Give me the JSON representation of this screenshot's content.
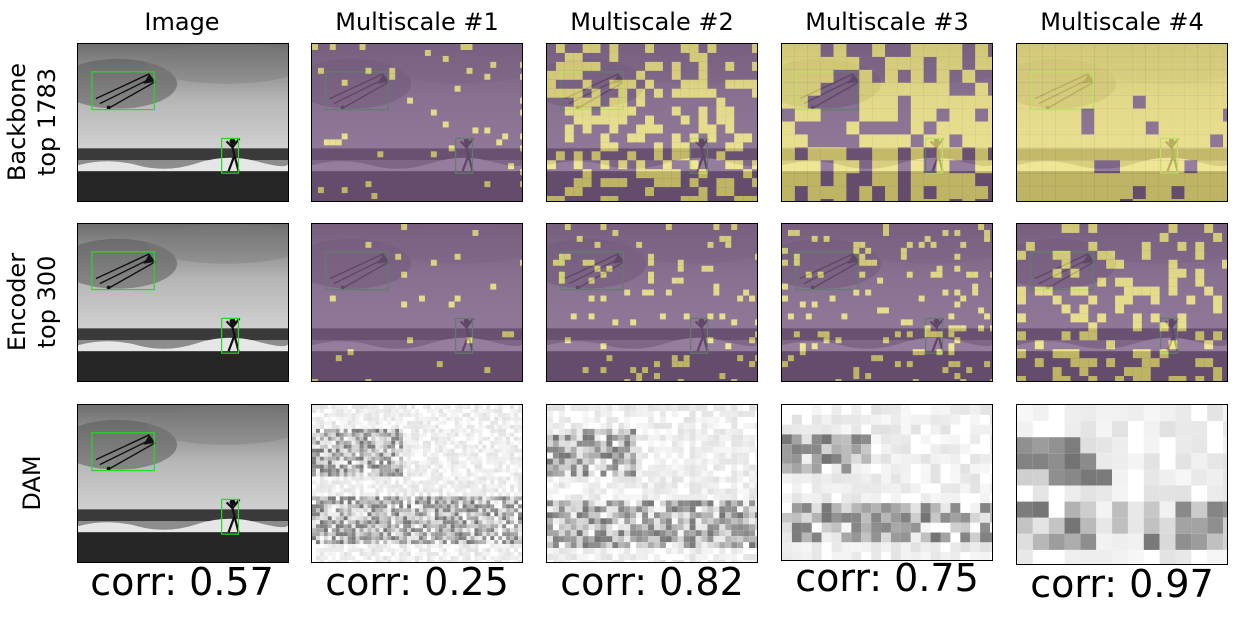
{
  "column_titles": [
    "Image",
    "Multiscale #1",
    "Multiscale #2",
    "Multiscale #3",
    "Multiscale #4"
  ],
  "row_labels": [
    {
      "line1": "Backbone",
      "line2": "top 1783"
    },
    {
      "line1": "Encoder",
      "line2": "top 300"
    },
    {
      "line1": "DAM",
      "line2": ""
    }
  ],
  "correlations": [
    "corr: 0.57",
    "corr: 0.25",
    "corr: 0.82",
    "corr: 0.75",
    "corr: 0.97"
  ],
  "colors": {
    "purple": "#7a5a86",
    "yellow": "#f2e57a",
    "box": "#22dd22"
  }
}
